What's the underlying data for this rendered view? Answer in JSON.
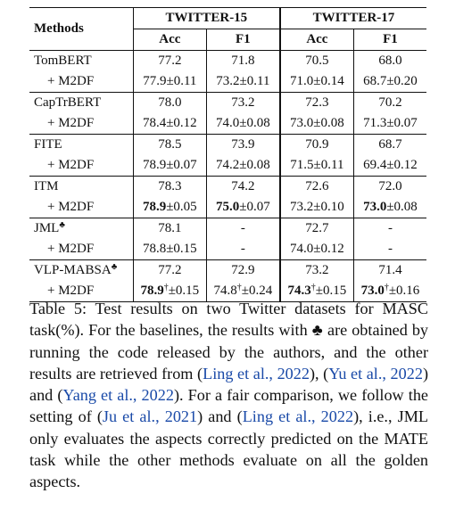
{
  "table": {
    "header": {
      "methods": "Methods",
      "dataset1": "TWITTER-15",
      "dataset2": "TWITTER-17",
      "acc": "Acc",
      "f1": "F1"
    },
    "rows": [
      {
        "name": "TomBERT",
        "t15_acc": "77.2",
        "t15_f1": "71.8",
        "t17_acc": "70.5",
        "t17_f1": "68.0"
      },
      {
        "name": "+ M2DF",
        "t15_acc": "77.9±0.11",
        "t15_f1": "73.2±0.11",
        "t17_acc": "71.0±0.14",
        "t17_f1": "68.7±0.20"
      },
      {
        "name": "CapTrBERT",
        "t15_acc": "78.0",
        "t15_f1": "73.2",
        "t17_acc": "72.3",
        "t17_f1": "70.2"
      },
      {
        "name": "+ M2DF",
        "t15_acc": "78.4±0.12",
        "t15_f1": "74.0±0.08",
        "t17_acc": "73.0±0.08",
        "t17_f1": "71.3±0.07"
      },
      {
        "name": "FITE",
        "t15_acc": "78.5",
        "t15_f1": "73.9",
        "t17_acc": "70.9",
        "t17_f1": "68.7"
      },
      {
        "name": "+ M2DF",
        "t15_acc": "78.9±0.07",
        "t15_f1": "74.2±0.08",
        "t17_acc": "71.5±0.11",
        "t17_f1": "69.4±0.12"
      },
      {
        "name": "ITM",
        "t15_acc": "78.3",
        "t15_f1": "74.2",
        "t17_acc": "72.6",
        "t17_f1": "72.0"
      },
      {
        "name": "+ M2DF",
        "t15_acc_bold": "78.9",
        "t15_acc_rest": "±0.05",
        "t15_f1_bold": "75.0",
        "t15_f1_rest": "±0.07",
        "t17_acc": "73.2±0.10",
        "t17_f1_bold": "73.0",
        "t17_f1_rest": "±0.08"
      },
      {
        "name": "JML",
        "club": "♣",
        "t15_acc": "78.1",
        "t15_f1": "-",
        "t17_acc": "72.7",
        "t17_f1": "-"
      },
      {
        "name": "+ M2DF",
        "t15_acc": "78.8±0.15",
        "t15_f1": "-",
        "t17_acc": "74.0±0.12",
        "t17_f1": "-"
      },
      {
        "name": "VLP-MABSA",
        "club": "♣",
        "t15_acc": "77.2",
        "t15_f1": "72.9",
        "t17_acc": "73.2",
        "t17_f1": "71.4"
      },
      {
        "name": "+ M2DF",
        "dagger": "†",
        "t15_acc_bold": "78.9",
        "t15_acc_rest": "±0.15",
        "t15_f1": "74.8",
        "t15_f1_rest": "±0.24",
        "t17_acc_bold": "74.3",
        "t17_acc_rest": "±0.15",
        "t17_f1_bold": "73.0",
        "t17_f1_rest": "±0.16"
      }
    ]
  },
  "caption": {
    "p1": "Table 5: Test results on two Twitter datasets for MASC task(%). For the baselines, the results with ",
    "club": "♣",
    "p2": " are obtained by running the code released by the authors, and the other results are retrieved from (",
    "cite1": "Ling et al., 2022",
    "p3": "), (",
    "cite2": "Yu et al., 2022",
    "p4": ") and (",
    "cite3": "Yang et al., 2022",
    "p5": "). For a fair comparison, we follow the setting of  (",
    "cite4": "Ju et al., 2021",
    "p6": ") and (",
    "cite5": "Ling et al., 2022",
    "p7": "), i.e., JML only evaluates the aspects correctly predicted on the MATE task while the other methods evaluate on all the golden aspects."
  }
}
